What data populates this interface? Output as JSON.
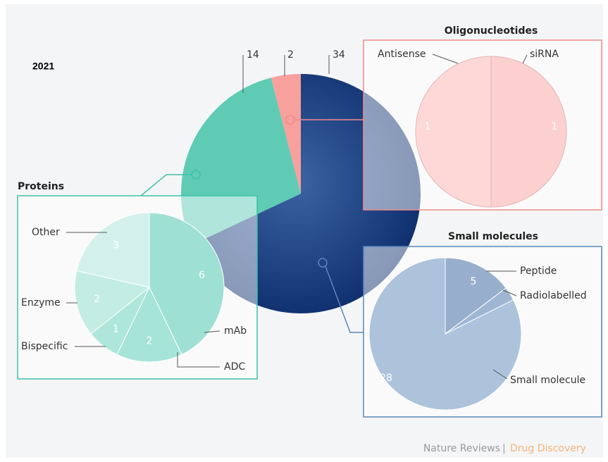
{
  "chart_data": [
    {
      "type": "pie",
      "title": "2021",
      "values": [
        14,
        2,
        34
      ],
      "colors": [
        "#5fcbb5",
        "#f7a09c",
        "#12387a"
      ],
      "source": [
        "Nature Reviews",
        "Drug Discovery"
      ]
    },
    {
      "type": "pie",
      "title": "Proteins",
      "categories": [
        "mAb",
        "ADC",
        "Bispecific",
        "Enzyme",
        "Other"
      ],
      "values": [
        6,
        2,
        1,
        2,
        3
      ],
      "colors": [
        "#3ec1a9",
        "#4cc7b0",
        "#5ccdb7",
        "#86d9c6",
        "#a6e3d5"
      ]
    },
    {
      "type": "pie",
      "title": "Oligonucleotides",
      "categories": [
        "Antisense",
        "siRNA"
      ],
      "values": [
        1,
        1
      ],
      "colors": [
        "#fbb0ae",
        "#f9a09c"
      ]
    },
    {
      "type": "pie",
      "title": "Small molecules",
      "categories": [
        "Peptide",
        "Radiolabelled",
        "Small molecule"
      ],
      "values": [
        5,
        1,
        28
      ],
      "colors": [
        "#2f5e99",
        "#3f6ca5",
        "#5b86b8"
      ]
    }
  ]
}
